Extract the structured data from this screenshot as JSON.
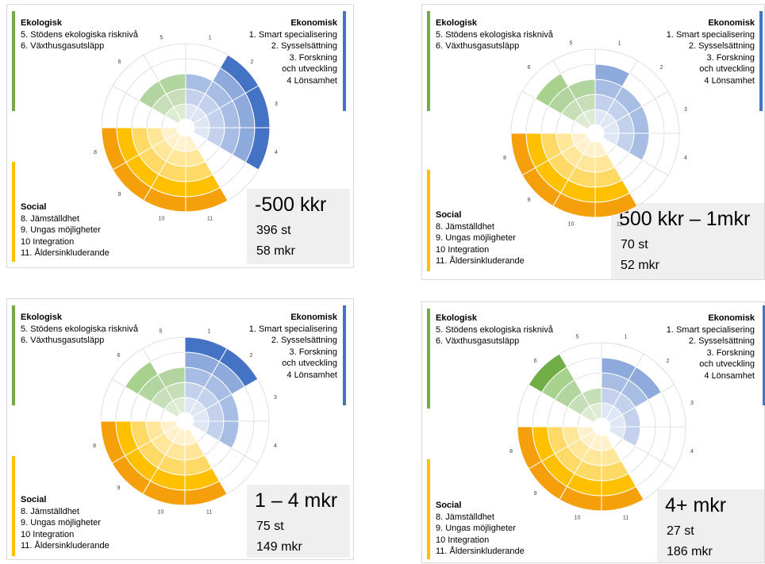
{
  "legend": {
    "ekologisk": {
      "heading": "Ekologisk",
      "items": [
        "5. Stödens ekologiska risknivå",
        "6. Växthusgasutsläpp"
      ]
    },
    "ekonomisk": {
      "heading": "Ekonomisk",
      "items": [
        "1. Smart specialisering",
        "2. Sysselsättning",
        "3. Forskning",
        "och utveckling",
        "4 Lönsamhet"
      ]
    },
    "social": {
      "heading": "Social",
      "items": [
        "8. Jämställdhet",
        "9. Ungas möjligheter",
        "10 Integration",
        "11. Åldersinkluderande"
      ]
    }
  },
  "colors": {
    "ekonomisk": "#4472c4",
    "ekologisk": "#70ad47",
    "social": "#ffc000",
    "social_outer": "#f5a00a"
  },
  "chart_data": [
    {
      "type": "polar-area",
      "title": "-500 kkr",
      "count": "396 st",
      "total": "58 mkr",
      "axis_labels": [
        "1",
        "2",
        "3",
        "4",
        "5",
        "6",
        "8",
        "9",
        "10",
        "11"
      ],
      "levels": [
        3,
        5,
        5,
        5,
        3,
        3,
        5,
        5,
        5,
        5
      ]
    },
    {
      "type": "polar-area",
      "title": "500 kkr – 1mkr",
      "count": "70 st",
      "total": "52 mkr",
      "axis_labels": [
        "1",
        "2",
        "3",
        "4",
        "5",
        "6",
        "8",
        "9",
        "10",
        "11"
      ],
      "levels": [
        4,
        3,
        3,
        3,
        3,
        4,
        5,
        5,
        5,
        5
      ]
    },
    {
      "type": "polar-area",
      "title": "1 – 4 mkr",
      "count": "75 st",
      "total": "149 mkr",
      "axis_labels": [
        "1",
        "2",
        "3",
        "4",
        "5",
        "6",
        "8",
        "9",
        "10",
        "11"
      ],
      "levels": [
        5,
        5,
        3,
        3,
        3,
        4,
        5,
        5,
        5,
        5
      ]
    },
    {
      "type": "polar-area",
      "title": "4+ mkr",
      "count": "27 st",
      "total": "186 mkr",
      "axis_labels": [
        "1",
        "2",
        "3",
        "4",
        "5",
        "6",
        "8",
        "9",
        "10",
        "11"
      ],
      "levels": [
        4,
        4,
        2,
        2,
        2,
        5,
        5,
        5,
        5,
        5
      ]
    }
  ]
}
